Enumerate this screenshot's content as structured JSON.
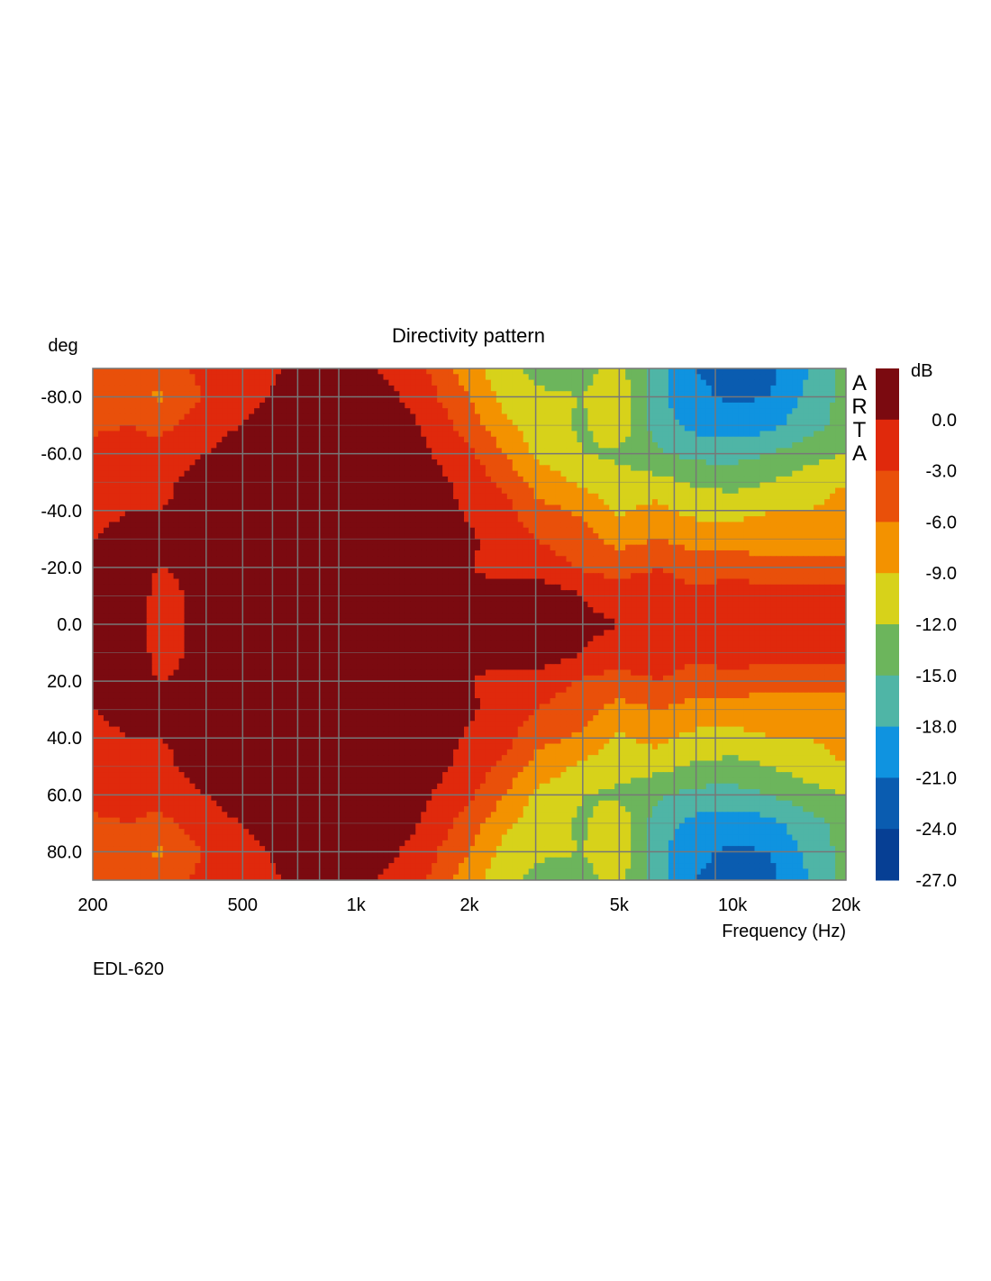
{
  "chart_data": {
    "type": "heatmap",
    "title": "Directivity pattern",
    "xlabel": "Frequency (Hz)",
    "ylabel": "deg",
    "x_scale": "log",
    "xlim": [
      200,
      20000
    ],
    "ylim": [
      -90,
      90
    ],
    "x_ticks": [
      {
        "value": 200,
        "label": "200"
      },
      {
        "value": 500,
        "label": "500"
      },
      {
        "value": 1000,
        "label": "1k"
      },
      {
        "value": 2000,
        "label": "2k"
      },
      {
        "value": 5000,
        "label": "5k"
      },
      {
        "value": 10000,
        "label": "10k"
      },
      {
        "value": 20000,
        "label": "20k"
      }
    ],
    "y_ticks": [
      {
        "value": -80,
        "label": "-80.0"
      },
      {
        "value": -60,
        "label": "-60.0"
      },
      {
        "value": -40,
        "label": "-40.0"
      },
      {
        "value": -20,
        "label": "-20.0"
      },
      {
        "value": 0,
        "label": "0.0"
      },
      {
        "value": 20,
        "label": "20.0"
      },
      {
        "value": 40,
        "label": "40.0"
      },
      {
        "value": 60,
        "label": "60.0"
      },
      {
        "value": 80,
        "label": "80.0"
      }
    ],
    "grid": true,
    "colorbar": {
      "unit": "dB",
      "levels": [
        {
          "label": "0.0",
          "value": 0.0,
          "color": "#7b0a10"
        },
        {
          "label": "-3.0",
          "value": -3.0,
          "color": "#e0290c"
        },
        {
          "label": "-6.0",
          "value": -6.0,
          "color": "#e9500a"
        },
        {
          "label": "-9.0",
          "value": -9.0,
          "color": "#f39200"
        },
        {
          "label": "-12.0",
          "value": -12.0,
          "color": "#d7d21a"
        },
        {
          "label": "-15.0",
          "value": -15.0,
          "color": "#6cb55c"
        },
        {
          "label": "-18.0",
          "value": -18.0,
          "color": "#4fb5a6"
        },
        {
          "label": "-21.0",
          "value": -21.0,
          "color": "#0f93e0"
        },
        {
          "label": "-24.0",
          "value": -24.0,
          "color": "#0a5cb0"
        },
        {
          "label": "-27.0",
          "value": -27.0,
          "color": "#063f94"
        }
      ]
    },
    "angles_deg": [
      0,
      10,
      20,
      30,
      40,
      50,
      60,
      70,
      80,
      90
    ],
    "frequencies_hz": [
      200,
      250,
      300,
      400,
      500,
      630,
      800,
      1000,
      1250,
      1600,
      2000,
      2500,
      3000,
      4000,
      5000,
      6300,
      8000,
      10000,
      12500,
      16000,
      20000
    ],
    "level_db_symmetric": [
      [
        -2,
        -1,
        -4,
        -2,
        -2,
        -1,
        -1.5,
        -1,
        -1.5,
        -2,
        -2.5,
        -2.5,
        -1,
        -2.5,
        -3,
        -3,
        -3.5,
        -3.5,
        -4,
        -4,
        -4
      ],
      [
        -2,
        -1,
        -4,
        -2,
        -2,
        -1,
        -0.5,
        -1,
        -1.5,
        -2,
        -2.5,
        -2.5,
        -1,
        -3,
        -4,
        -3.5,
        -5,
        -4,
        -5,
        -5,
        -5
      ],
      [
        -3,
        -2.5,
        -3,
        -2.5,
        -2,
        -1.5,
        -0.5,
        -0.5,
        -0.5,
        -1.5,
        -3,
        -3.5,
        -4,
        -6.5,
        -7.5,
        -6,
        -8,
        -7,
        -8,
        -8,
        -8
      ],
      [
        -3,
        -2.5,
        -3,
        -2.5,
        -2,
        -1,
        -1,
        -0.5,
        -0.5,
        -1,
        -2.5,
        -4.5,
        -6,
        -8,
        -10,
        -9,
        -10,
        -10,
        -11,
        -11,
        -10
      ],
      [
        -3.5,
        -3,
        -3,
        -2.5,
        -0.5,
        -2,
        -1.5,
        -0.5,
        -0.5,
        -1.5,
        -3.5,
        -5,
        -8,
        -9.5,
        -12.5,
        -11,
        -13,
        -13,
        -12,
        -12,
        -11
      ],
      [
        -3.5,
        -3.5,
        -3.5,
        -2,
        -1,
        -0.5,
        -0.5,
        -0.5,
        -1,
        -2,
        -4,
        -7,
        -10,
        -12.5,
        -14,
        -14,
        -15.5,
        -16,
        -15,
        -13.5,
        -12
      ],
      [
        -5,
        -4.5,
        -4.5,
        -3,
        -1.5,
        -0.5,
        -0.5,
        -0.5,
        -1,
        -3,
        -5.5,
        -9,
        -12.5,
        -15,
        -15.5,
        -17.5,
        -19,
        -19,
        -18,
        -16,
        -15
      ],
      [
        -6.5,
        -6,
        -7,
        -4,
        -3,
        -1.5,
        -1,
        -0.5,
        -1,
        -4,
        -7.5,
        -11.5,
        -13.5,
        -15.5,
        -13,
        -19.5,
        -22,
        -22.5,
        -22,
        -19,
        -17
      ],
      [
        -7,
        -7.5,
        -9.5,
        -5.5,
        -4,
        -2.5,
        -2,
        -1.5,
        -2.5,
        -5.5,
        -9,
        -13,
        -14.5,
        -15,
        -12.5,
        -20,
        -23.5,
        -24.5,
        -24,
        -20,
        -17
      ],
      [
        -8,
        -7,
        -8,
        -5,
        -5,
        -3,
        -2.5,
        -2,
        -4,
        -6.5,
        -11,
        -14,
        -16,
        -16,
        -14,
        -20,
        -24,
        -25,
        -25,
        -21,
        -17
      ]
    ]
  },
  "watermark": "ARTA",
  "footer_label": "EDL-620"
}
